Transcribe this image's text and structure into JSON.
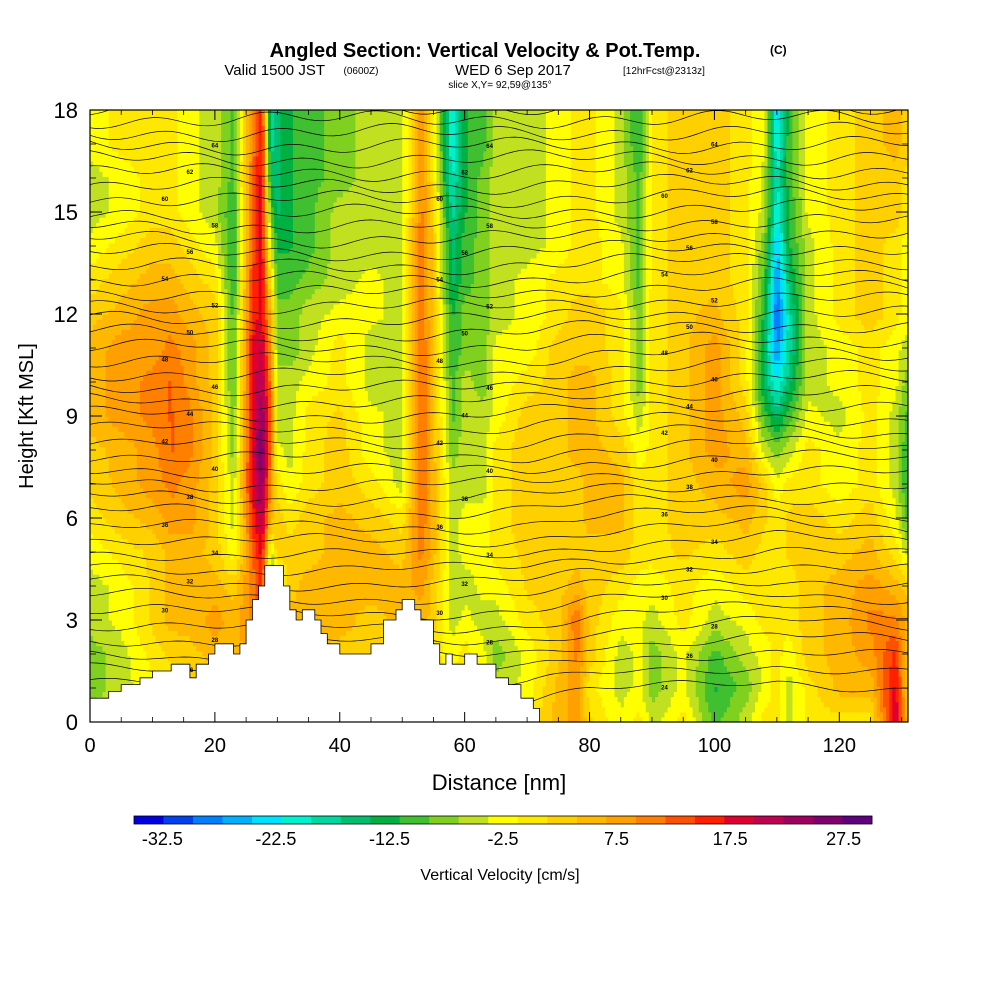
{
  "header": {
    "title": "Angled Section: Vertical Velocity & Pot.Temp.",
    "title_tag": "(C)",
    "valid_a": "Valid 1500 JST",
    "valid_b": "(0600Z)",
    "valid_c": "WED 6 Sep 2017",
    "valid_d": "[12hrFcst@2313z]",
    "slice": "slice X,Y= 92,59@135°"
  },
  "chart_data": {
    "type": "heatmap",
    "title": "Angled Section: Vertical Velocity & Pot.Temp.",
    "xlabel": "Distance [nm]",
    "ylabel": "Height [Kft MSL]",
    "xlim": [
      0,
      131
    ],
    "ylim": [
      0,
      18
    ],
    "x_ticks": [
      "0",
      "20",
      "40",
      "60",
      "80",
      "100",
      "120"
    ],
    "x_tick_values": [
      0,
      20,
      40,
      60,
      80,
      100,
      120
    ],
    "y_ticks": [
      "0",
      "3",
      "6",
      "9",
      "12",
      "15",
      "18"
    ],
    "y_tick_values": [
      0,
      3,
      6,
      9,
      12,
      15,
      18
    ],
    "colorbar": {
      "label": "Vertical Velocity [cm/s]",
      "ticks": [
        "-32.5",
        "-22.5",
        "-12.5",
        "-2.5",
        "7.5",
        "17.5",
        "27.5"
      ],
      "tick_values": [
        -32.5,
        -22.5,
        -12.5,
        -2.5,
        7.5,
        17.5,
        27.5
      ],
      "min": -35,
      "max": 30,
      "colors": [
        "#0000e0",
        "#0040f0",
        "#0080ff",
        "#00b0ff",
        "#00e0ff",
        "#00f0d0",
        "#00d8a0",
        "#00c070",
        "#00b040",
        "#40c030",
        "#80d020",
        "#c0e020",
        "#ffff00",
        "#ffe800",
        "#ffd000",
        "#ffb800",
        "#ffa000",
        "#ff8000",
        "#ff5000",
        "#ff2000",
        "#e00030",
        "#c00050",
        "#a00060",
        "#800070",
        "#600080"
      ]
    },
    "velocity_rows_height_kft": [
      0,
      1,
      2,
      3,
      4,
      5,
      6,
      7,
      8,
      9,
      10,
      11,
      12,
      13,
      14,
      15,
      16,
      17,
      18
    ],
    "velocity_cols_distance_nm": [
      0,
      5,
      10,
      13,
      16,
      20,
      23,
      26,
      27.5,
      29,
      30,
      32,
      35,
      40,
      45,
      50,
      53,
      55,
      58,
      60,
      63,
      65,
      70,
      75,
      78,
      80,
      85,
      88,
      90,
      95,
      100,
      105,
      108,
      110,
      112,
      115,
      120,
      125,
      129,
      131
    ],
    "velocity_cm_s": [
      [
        -5,
        -3,
        0,
        0,
        0,
        0,
        0,
        0,
        0,
        0,
        0,
        0,
        0,
        0,
        0,
        0,
        0,
        0,
        0,
        0,
        0,
        0,
        0,
        5,
        8,
        2,
        -3,
        0,
        -5,
        0,
        -10,
        -5,
        0,
        0,
        -5,
        0,
        0,
        0,
        20,
        5
      ],
      [
        -8,
        -5,
        -2,
        0,
        2,
        2,
        5,
        8,
        10,
        5,
        0,
        3,
        5,
        3,
        2,
        2,
        0,
        0,
        0,
        2,
        0,
        -5,
        -3,
        5,
        8,
        0,
        -5,
        -3,
        -8,
        -3,
        -12,
        -8,
        -3,
        0,
        -5,
        0,
        5,
        5,
        18,
        3
      ],
      [
        -8,
        -5,
        0,
        2,
        3,
        5,
        5,
        8,
        10,
        5,
        3,
        5,
        5,
        3,
        3,
        5,
        0,
        0,
        -3,
        0,
        -3,
        -8,
        -3,
        3,
        10,
        3,
        -5,
        -3,
        -8,
        -3,
        -10,
        -5,
        -3,
        0,
        -3,
        3,
        5,
        8,
        15,
        3
      ],
      [
        -5,
        -3,
        2,
        5,
        5,
        8,
        5,
        10,
        12,
        -5,
        -3,
        5,
        5,
        5,
        3,
        5,
        5,
        3,
        -5,
        -3,
        -5,
        -5,
        0,
        3,
        12,
        3,
        -3,
        -3,
        -5,
        0,
        -5,
        -3,
        0,
        0,
        0,
        3,
        5,
        10,
        10,
        5
      ],
      [
        -5,
        -3,
        2,
        5,
        5,
        5,
        3,
        10,
        15,
        -15,
        -8,
        3,
        5,
        5,
        5,
        5,
        8,
        3,
        -5,
        -5,
        -3,
        -3,
        2,
        3,
        5,
        3,
        0,
        -2,
        -3,
        0,
        -3,
        0,
        0,
        0,
        0,
        3,
        5,
        8,
        5,
        3
      ],
      [
        -3,
        0,
        2,
        5,
        5,
        3,
        -3,
        12,
        18,
        -5,
        3,
        3,
        3,
        5,
        5,
        3,
        10,
        5,
        -5,
        -3,
        -3,
        0,
        2,
        3,
        3,
        3,
        3,
        0,
        0,
        2,
        0,
        3,
        0,
        0,
        2,
        3,
        3,
        5,
        0,
        -5
      ],
      [
        0,
        3,
        5,
        8,
        8,
        3,
        -5,
        15,
        22,
        5,
        3,
        0,
        3,
        5,
        3,
        0,
        12,
        5,
        -5,
        -3,
        -3,
        0,
        3,
        3,
        3,
        5,
        5,
        0,
        0,
        3,
        3,
        5,
        2,
        0,
        2,
        3,
        0,
        3,
        -3,
        -10
      ],
      [
        2,
        5,
        8,
        10,
        8,
        3,
        -5,
        18,
        25,
        8,
        0,
        -3,
        0,
        3,
        0,
        -5,
        12,
        5,
        -5,
        -5,
        -5,
        0,
        3,
        3,
        3,
        5,
        5,
        0,
        0,
        3,
        5,
        8,
        3,
        -3,
        0,
        0,
        -3,
        0,
        -5,
        -12
      ],
      [
        3,
        5,
        8,
        12,
        10,
        3,
        -8,
        18,
        28,
        10,
        -3,
        -5,
        0,
        3,
        -3,
        -5,
        12,
        5,
        -8,
        -5,
        -5,
        0,
        3,
        3,
        5,
        5,
        3,
        -3,
        0,
        3,
        8,
        5,
        -5,
        -8,
        -5,
        0,
        -3,
        0,
        -5,
        -12
      ],
      [
        5,
        8,
        10,
        12,
        10,
        3,
        -8,
        18,
        25,
        12,
        -5,
        -5,
        0,
        2,
        -3,
        -5,
        12,
        5,
        -10,
        -5,
        -5,
        -3,
        3,
        3,
        5,
        5,
        0,
        -5,
        0,
        3,
        8,
        3,
        -10,
        -15,
        -10,
        -3,
        -5,
        0,
        -5,
        -10
      ],
      [
        5,
        8,
        10,
        12,
        8,
        3,
        -10,
        18,
        22,
        10,
        -5,
        -5,
        -3,
        0,
        -5,
        -5,
        12,
        5,
        -10,
        -5,
        -8,
        -3,
        0,
        3,
        5,
        5,
        0,
        -8,
        0,
        3,
        8,
        0,
        -15,
        -22,
        -15,
        -5,
        -3,
        0,
        -3,
        -8
      ],
      [
        5,
        8,
        8,
        10,
        8,
        3,
        -10,
        18,
        20,
        8,
        -8,
        -8,
        -5,
        0,
        -5,
        -5,
        12,
        5,
        -12,
        -8,
        -8,
        -3,
        -3,
        3,
        3,
        3,
        0,
        -8,
        0,
        3,
        8,
        0,
        -15,
        -28,
        -18,
        -5,
        -3,
        0,
        -3,
        -5
      ],
      [
        3,
        5,
        8,
        8,
        5,
        3,
        -10,
        15,
        18,
        5,
        -8,
        -8,
        -5,
        -3,
        -3,
        -5,
        12,
        3,
        -12,
        -8,
        -8,
        -5,
        -3,
        0,
        3,
        3,
        0,
        -8,
        0,
        3,
        5,
        0,
        -12,
        -30,
        -18,
        -5,
        0,
        3,
        0,
        -3
      ],
      [
        0,
        3,
        5,
        5,
        3,
        0,
        -12,
        15,
        18,
        0,
        -10,
        -10,
        -8,
        -5,
        -3,
        -5,
        12,
        3,
        -15,
        -10,
        -8,
        -5,
        -3,
        0,
        0,
        0,
        -3,
        -10,
        0,
        3,
        3,
        0,
        -10,
        -28,
        -15,
        -5,
        0,
        3,
        0,
        -3
      ],
      [
        -3,
        0,
        3,
        3,
        0,
        -3,
        -12,
        12,
        18,
        -5,
        -12,
        -12,
        -10,
        -5,
        -5,
        -5,
        12,
        3,
        -15,
        -10,
        -8,
        -5,
        -5,
        -3,
        0,
        0,
        -3,
        -10,
        0,
        3,
        3,
        0,
        -8,
        -25,
        -12,
        -5,
        0,
        3,
        0,
        -3
      ],
      [
        -5,
        -3,
        0,
        0,
        -3,
        -5,
        -12,
        12,
        18,
        -10,
        -15,
        -12,
        -10,
        -5,
        -5,
        -5,
        10,
        3,
        -18,
        -12,
        -8,
        -5,
        -5,
        -3,
        0,
        0,
        -5,
        -10,
        0,
        3,
        3,
        0,
        -5,
        -22,
        -12,
        -3,
        0,
        3,
        3,
        0
      ],
      [
        -5,
        -3,
        0,
        0,
        -3,
        -5,
        -10,
        12,
        18,
        -15,
        -15,
        -12,
        -10,
        -8,
        -5,
        -5,
        10,
        0,
        -20,
        -12,
        -8,
        -5,
        -5,
        -3,
        0,
        0,
        -5,
        -10,
        0,
        3,
        3,
        0,
        -5,
        -20,
        -10,
        -3,
        0,
        3,
        3,
        0
      ],
      [
        -3,
        0,
        0,
        0,
        -3,
        -5,
        -10,
        10,
        18,
        -18,
        -15,
        -12,
        -10,
        -8,
        -5,
        -5,
        10,
        0,
        -22,
        -12,
        -10,
        -5,
        -5,
        -3,
        0,
        0,
        -5,
        -12,
        0,
        3,
        3,
        0,
        -3,
        -22,
        -10,
        -3,
        0,
        3,
        5,
        3
      ],
      [
        -3,
        0,
        0,
        0,
        -3,
        -5,
        -10,
        10,
        18,
        -20,
        -15,
        -12,
        -10,
        -8,
        -5,
        -5,
        10,
        0,
        -22,
        -12,
        -10,
        -5,
        -5,
        -3,
        0,
        0,
        -5,
        -12,
        0,
        3,
        3,
        0,
        -3,
        -25,
        -10,
        -3,
        0,
        3,
        5,
        3
      ]
    ],
    "terrain": {
      "label": "terrain",
      "x": [
        0,
        3,
        5,
        8,
        10,
        13,
        16,
        17,
        19,
        20,
        22,
        23,
        24,
        25,
        26,
        27,
        28,
        29,
        30,
        31,
        32,
        33,
        34,
        35,
        36,
        37,
        38,
        40,
        42,
        45,
        47,
        49,
        50,
        52,
        53,
        55,
        56,
        57,
        58,
        59,
        60,
        61,
        62,
        63,
        65,
        67,
        69,
        71,
        72
      ],
      "height_kft": [
        0.7,
        0.9,
        1.1,
        1.3,
        1.5,
        1.7,
        1.3,
        1.7,
        2.0,
        2.3,
        2.3,
        2.0,
        2.3,
        3.0,
        3.6,
        4.0,
        4.6,
        4.6,
        4.6,
        4.0,
        3.3,
        3.0,
        3.3,
        3.3,
        3.0,
        2.6,
        2.3,
        2.0,
        2.0,
        2.3,
        3.0,
        3.3,
        3.6,
        3.3,
        3.0,
        2.3,
        1.7,
        2.0,
        1.7,
        1.7,
        2.0,
        2.0,
        1.7,
        1.7,
        1.3,
        1.1,
        0.7,
        0.4,
        0.0
      ]
    },
    "pot_temp_contours_c": {
      "levels": [
        24,
        25,
        26,
        27,
        28,
        29,
        30,
        31,
        32,
        33,
        34,
        35,
        36,
        37,
        38,
        39,
        40,
        41,
        42,
        43,
        44,
        45,
        46,
        47,
        48,
        49,
        50,
        51,
        52,
        53,
        54,
        55,
        56,
        57,
        58,
        59,
        60,
        61,
        62,
        63,
        64,
        65,
        66,
        67,
        68
      ],
      "label_values": [
        "24",
        "26",
        "28",
        "30",
        "32",
        "34",
        "36",
        "38",
        "40",
        "42",
        "44",
        "46",
        "48",
        "50",
        "52",
        "54",
        "56",
        "58",
        "60",
        "62",
        "64",
        "66",
        "68"
      ],
      "base_height_kft": [
        [
          0,
          0.6
        ],
        [
          10,
          0.6
        ],
        [
          20,
          0.5
        ],
        [
          30,
          0.5
        ],
        [
          40,
          0.5
        ],
        [
          50,
          0.5
        ],
        [
          60,
          0.5
        ],
        [
          70,
          0.6
        ],
        [
          80,
          0.9
        ],
        [
          90,
          1.0
        ],
        [
          100,
          1.1
        ],
        [
          110,
          1.2
        ],
        [
          120,
          1.1
        ],
        [
          131,
          1.0
        ]
      ]
    }
  }
}
